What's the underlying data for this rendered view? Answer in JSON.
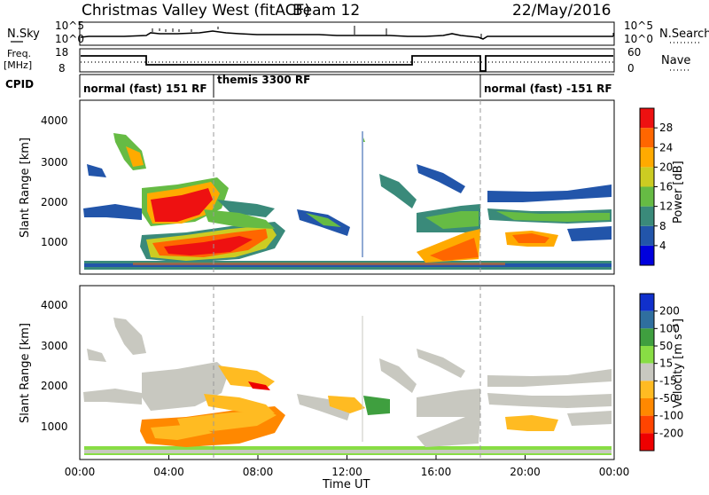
{
  "header": {
    "title": "Christmas Valley West (fitACF)",
    "beam": "Beam 12",
    "date": "22/May/2016"
  },
  "sky_panel": {
    "left_label": "N.Sky",
    "right_label": "N.Search",
    "yticks": [
      "10^5",
      "10^0"
    ]
  },
  "freq_panel": {
    "left_label_line1": "Freq.",
    "left_label_line2": "[MHz]",
    "left_ticks": [
      "18",
      "8"
    ],
    "right_label": "Nave",
    "right_ticks": [
      "60",
      "0"
    ]
  },
  "cpid": {
    "label": "CPID",
    "modes": [
      "normal (fast) 151 RF",
      "themis 3300 RF",
      "normal (fast) -151 RF"
    ]
  },
  "chart_data": [
    {
      "type": "heatmap",
      "name": "power",
      "ylabel": "Slant Range [km]",
      "yticks": [
        "1000",
        "2000",
        "3000",
        "4000"
      ],
      "ylim": [
        150,
        4600
      ],
      "xlim_hours": [
        0,
        24
      ],
      "colorbar": {
        "label": "Power [dB]",
        "ticks": [
          "4",
          "8",
          "12",
          "16",
          "20",
          "24",
          "28"
        ],
        "colors": [
          "#0000dd",
          "#2255aa",
          "#3a8a7a",
          "#66bb44",
          "#cccc22",
          "#ffaa00",
          "#ff6600",
          "#ee1111"
        ]
      }
    },
    {
      "type": "heatmap",
      "name": "velocity",
      "ylabel": "Slant Range [km]",
      "yticks": [
        "1000",
        "2000",
        "3000",
        "4000"
      ],
      "ylim": [
        150,
        4600
      ],
      "xlim_hours": [
        0,
        24
      ],
      "xlabel": "Time UT",
      "xticks": [
        "00:00",
        "04:00",
        "08:00",
        "12:00",
        "16:00",
        "20:00",
        "00:00"
      ],
      "colorbar": {
        "label": "Velocity [m s⁻¹]",
        "ticks": [
          "200",
          "100",
          "50",
          "15",
          "-15",
          "-50",
          "-100",
          "-200"
        ],
        "colors": [
          "#1030cc",
          "#2f6f9f",
          "#3f9f3f",
          "#88dd44",
          "#c8c8c0",
          "#ffbb22",
          "#ff8800",
          "#ff4400",
          "#ee0000"
        ]
      }
    }
  ]
}
